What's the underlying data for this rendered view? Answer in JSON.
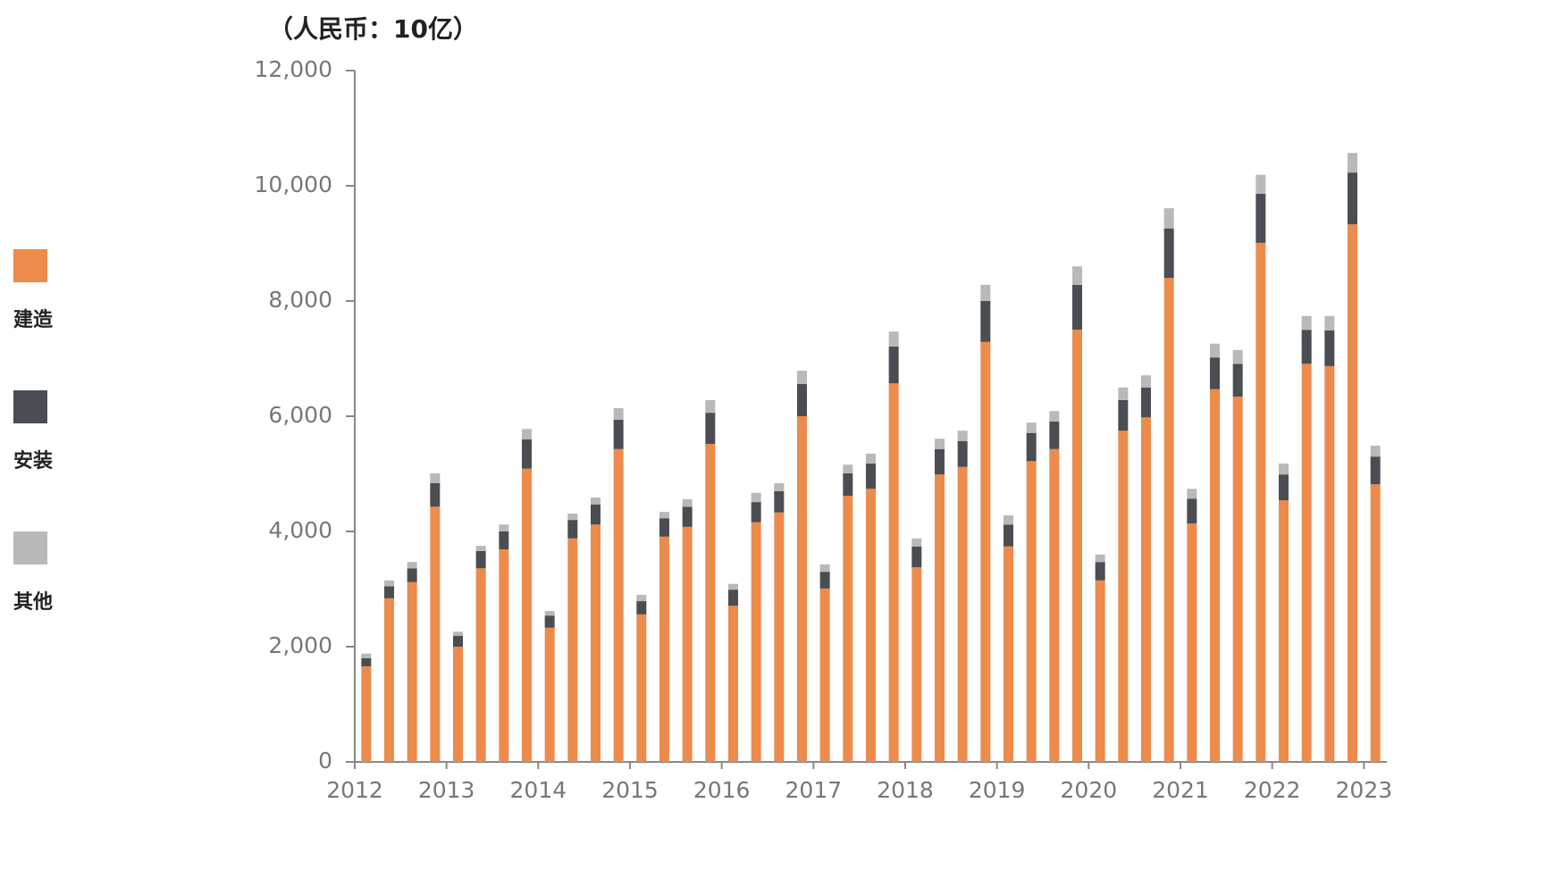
{
  "chart_data": {
    "type": "stacked_bar",
    "title": "（人民币：10亿）",
    "categories": [
      null,
      null,
      null,
      null,
      null,
      null,
      null,
      null,
      null,
      null,
      null,
      null,
      null,
      null,
      null,
      null,
      null,
      null,
      null,
      null,
      null,
      null,
      null,
      null,
      null,
      null,
      null,
      null,
      null,
      null,
      null,
      null,
      null,
      null,
      null,
      null,
      null,
      null,
      null,
      null,
      null,
      null,
      null,
      null,
      null
    ],
    "year_labels": [
      "2012",
      "2013",
      "2014",
      "2015",
      "2016",
      "2017",
      "2018",
      "2019",
      "2020",
      "2021",
      "2022",
      "2023"
    ],
    "series": [
      {
        "name": "建造",
        "color": "#ec8b4c",
        "values": [
          1660,
          2840,
          3120,
          4430,
          2000,
          3360,
          3690,
          5090,
          2330,
          3880,
          4120,
          5430,
          2560,
          3910,
          4080,
          5520,
          2710,
          4160,
          4330,
          6000,
          3010,
          4620,
          4740,
          6570,
          3380,
          4990,
          5120,
          7290,
          3740,
          5220,
          5430,
          7500,
          3150,
          5750,
          5980,
          8400,
          4140,
          6470,
          6340,
          9010,
          4540,
          6910,
          6870,
          9330,
          4820
        ]
      },
      {
        "name": "安装",
        "color": "#4a4d51",
        "values": [
          140,
          210,
          240,
          410,
          190,
          300,
          310,
          510,
          210,
          320,
          350,
          510,
          230,
          320,
          350,
          540,
          280,
          350,
          370,
          560,
          290,
          390,
          440,
          640,
          360,
          440,
          450,
          710,
          380,
          490,
          480,
          780,
          320,
          530,
          520,
          860,
          430,
          550,
          570,
          850,
          450,
          590,
          620,
          900,
          480
        ]
      },
      {
        "name": "其他",
        "color": "#b9b9b9",
        "values": [
          80,
          100,
          110,
          170,
          70,
          90,
          120,
          180,
          80,
          110,
          120,
          200,
          110,
          110,
          130,
          220,
          100,
          160,
          140,
          230,
          130,
          150,
          170,
          260,
          140,
          180,
          180,
          280,
          160,
          180,
          180,
          320,
          130,
          220,
          210,
          350,
          170,
          240,
          240,
          330,
          190,
          240,
          250,
          340,
          190
        ]
      }
    ],
    "ylim": [
      0,
      12000
    ],
    "yticks": [
      0,
      {
        "value": 2000,
        "label": "2,000"
      },
      {
        "value": 4000,
        "label": "4,000"
      },
      {
        "value": 6000,
        "label": "6,000"
      },
      {
        "value": 8000,
        "label": "8,000"
      },
      {
        "value": 10000,
        "label": "10,000"
      },
      {
        "value": 12000,
        "label": "12,000"
      }
    ],
    "legend": "left"
  }
}
